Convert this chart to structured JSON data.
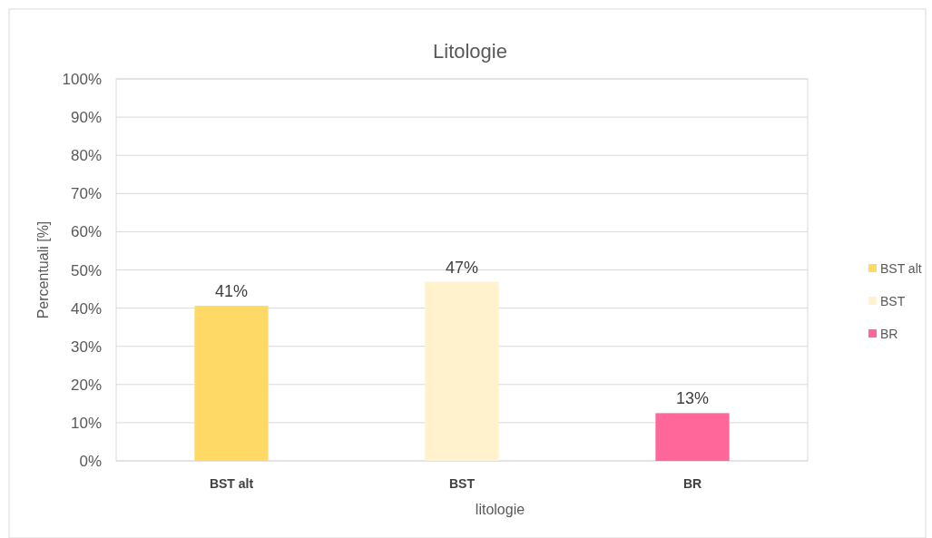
{
  "chart_data": {
    "type": "bar",
    "title": "Litologie",
    "xlabel": "litologie",
    "ylabel": "Percentuali [%]",
    "categories": [
      "BST alt",
      "BST",
      "BR"
    ],
    "series": [
      {
        "name": "BST alt",
        "color": "#ffd966",
        "values": [
          40.6,
          null,
          null
        ],
        "value_labels": [
          "41%",
          null,
          null
        ]
      },
      {
        "name": "BST",
        "color": "#fff2cc",
        "values": [
          null,
          46.9,
          null
        ],
        "value_labels": [
          null,
          "47%",
          null
        ]
      },
      {
        "name": "BR",
        "color": "#ff6699",
        "values": [
          null,
          null,
          12.5
        ],
        "value_labels": [
          null,
          null,
          "13%"
        ]
      }
    ],
    "ylim": [
      0,
      100
    ],
    "yticks": [
      {
        "value": 0,
        "label": "0%"
      },
      {
        "value": 10,
        "label": "10%"
      },
      {
        "value": 20,
        "label": "20%"
      },
      {
        "value": 30,
        "label": "30%"
      },
      {
        "value": 40,
        "label": "40%"
      },
      {
        "value": 50,
        "label": "50%"
      },
      {
        "value": 60,
        "label": "60%"
      },
      {
        "value": 70,
        "label": "70%"
      },
      {
        "value": 80,
        "label": "80%"
      },
      {
        "value": 90,
        "label": "90%"
      },
      {
        "value": 100,
        "label": "100%"
      }
    ],
    "grid": "y",
    "legend": "right"
  }
}
